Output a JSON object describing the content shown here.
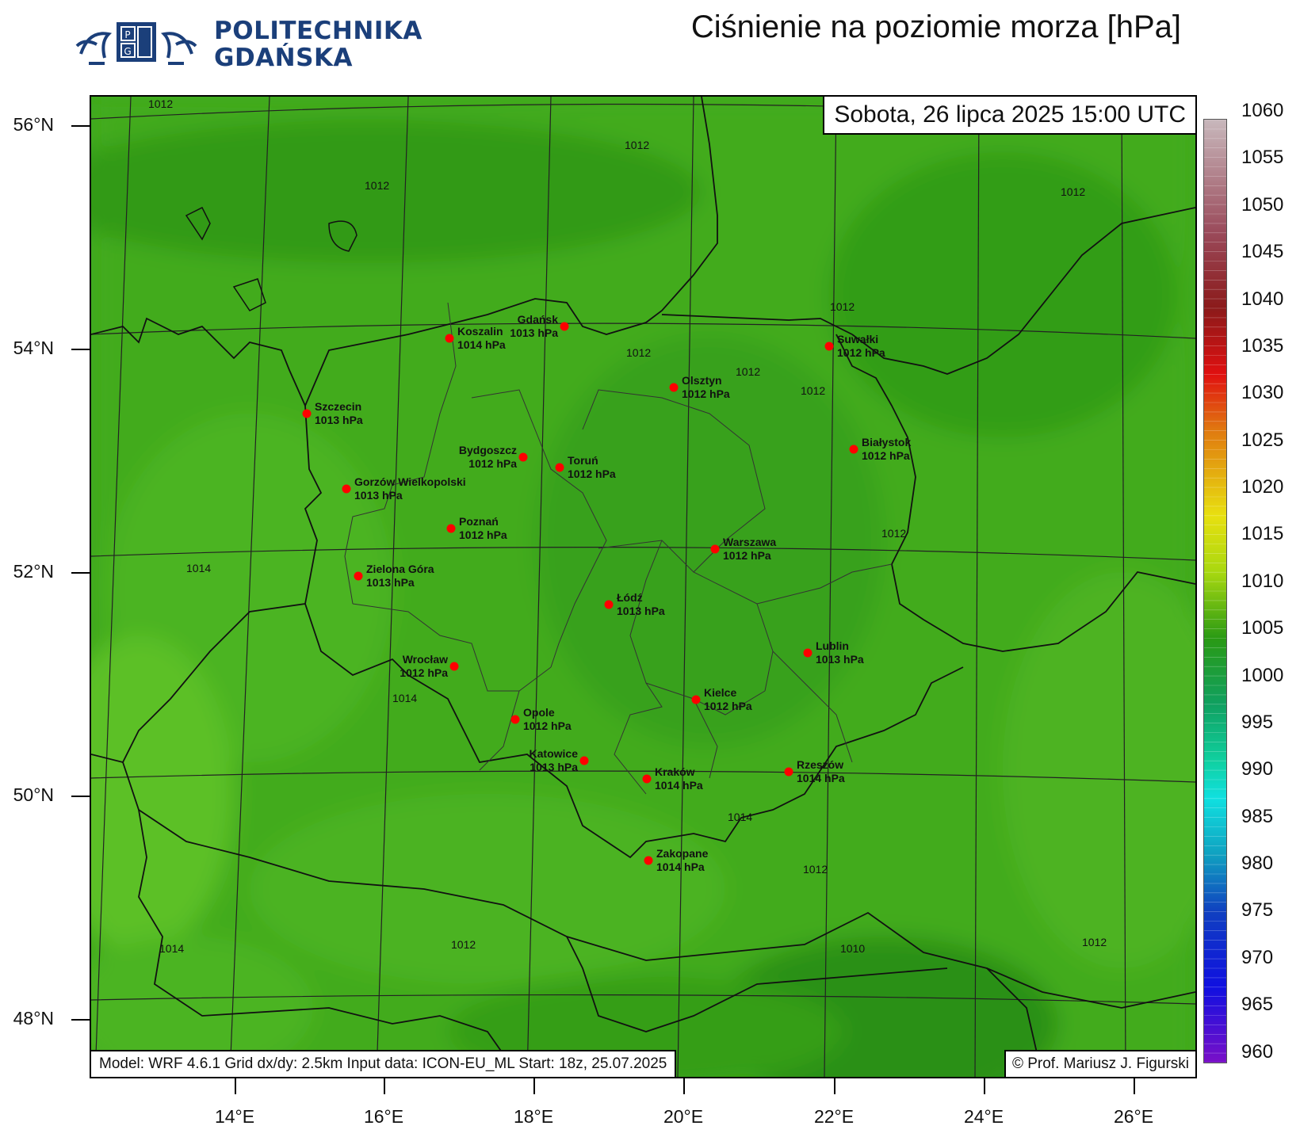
{
  "header": {
    "logo_line1": "POLITECHNIKA",
    "logo_line2": "GDAŃSKA",
    "title": "Ciśnienie na poziomie morza [hPa]"
  },
  "map": {
    "date_label": "Sobota, 26 lipca 2025 15:00 UTC",
    "model_info": "Model: WRF 4.6.1   Grid dx/dy: 2.5km   Input data: ICON-EU_ML   Start: 18z, 25.07.2025",
    "copyright": "© Prof. Mariusz J. Figurski",
    "lat_labels": [
      "56°N",
      "54°N",
      "52°N",
      "50°N",
      "48°N"
    ],
    "lon_labels": [
      "14°E",
      "16°E",
      "18°E",
      "20°E",
      "22°E",
      "24°E",
      "26°E"
    ],
    "cities": [
      {
        "name": "Koszalin",
        "value": "1014 hPa"
      },
      {
        "name": "Gdańsk",
        "value": "1013 hPa"
      },
      {
        "name": "Suwałki",
        "value": "1012 hPa"
      },
      {
        "name": "Olsztyn",
        "value": "1012 hPa"
      },
      {
        "name": "Szczecin",
        "value": "1013 hPa"
      },
      {
        "name": "Bydgoszcz",
        "value": "1012 hPa"
      },
      {
        "name": "Toruń",
        "value": "1012 hPa"
      },
      {
        "name": "Białystok",
        "value": "1012 hPa"
      },
      {
        "name": "Gorzów Wielkopolski",
        "value": "1013 hPa"
      },
      {
        "name": "Poznań",
        "value": "1012 hPa"
      },
      {
        "name": "Warszawa",
        "value": "1012 hPa"
      },
      {
        "name": "Zielona Góra",
        "value": "1013 hPa"
      },
      {
        "name": "Łódź",
        "value": "1013 hPa"
      },
      {
        "name": "Lublin",
        "value": "1013 hPa"
      },
      {
        "name": "Wrocław",
        "value": "1012 hPa"
      },
      {
        "name": "Kielce",
        "value": "1012 hPa"
      },
      {
        "name": "Opole",
        "value": "1012 hPa"
      },
      {
        "name": "Katowice",
        "value": "1013 hPa"
      },
      {
        "name": "Kraków",
        "value": "1014 hPa"
      },
      {
        "name": "Rzeszów",
        "value": "1014 hPa"
      },
      {
        "name": "Zakopane",
        "value": "1014 hPa"
      }
    ],
    "contour_labels": [
      "1012",
      "1012",
      "1012",
      "1012",
      "1012",
      "1012",
      "1012",
      "1012",
      "1014",
      "1012",
      "1014",
      "1014",
      "1012",
      "1014",
      "1012",
      "1010",
      "1012"
    ]
  },
  "colorbar": {
    "labels": [
      "1060",
      "1055",
      "1050",
      "1045",
      "1040",
      "1035",
      "1030",
      "1025",
      "1020",
      "1015",
      "1010",
      "1005",
      "1000",
      "995",
      "990",
      "985",
      "980",
      "975",
      "970",
      "965",
      "960"
    ],
    "colors": {
      "max": "#c8b8bc",
      "red": "#8b1a1a",
      "orange": "#e07a10",
      "yellow": "#e8e010",
      "green": "#2a9a14",
      "cyan": "#10e0e0",
      "blue": "#1040c0",
      "min": "#7a10c8"
    }
  }
}
